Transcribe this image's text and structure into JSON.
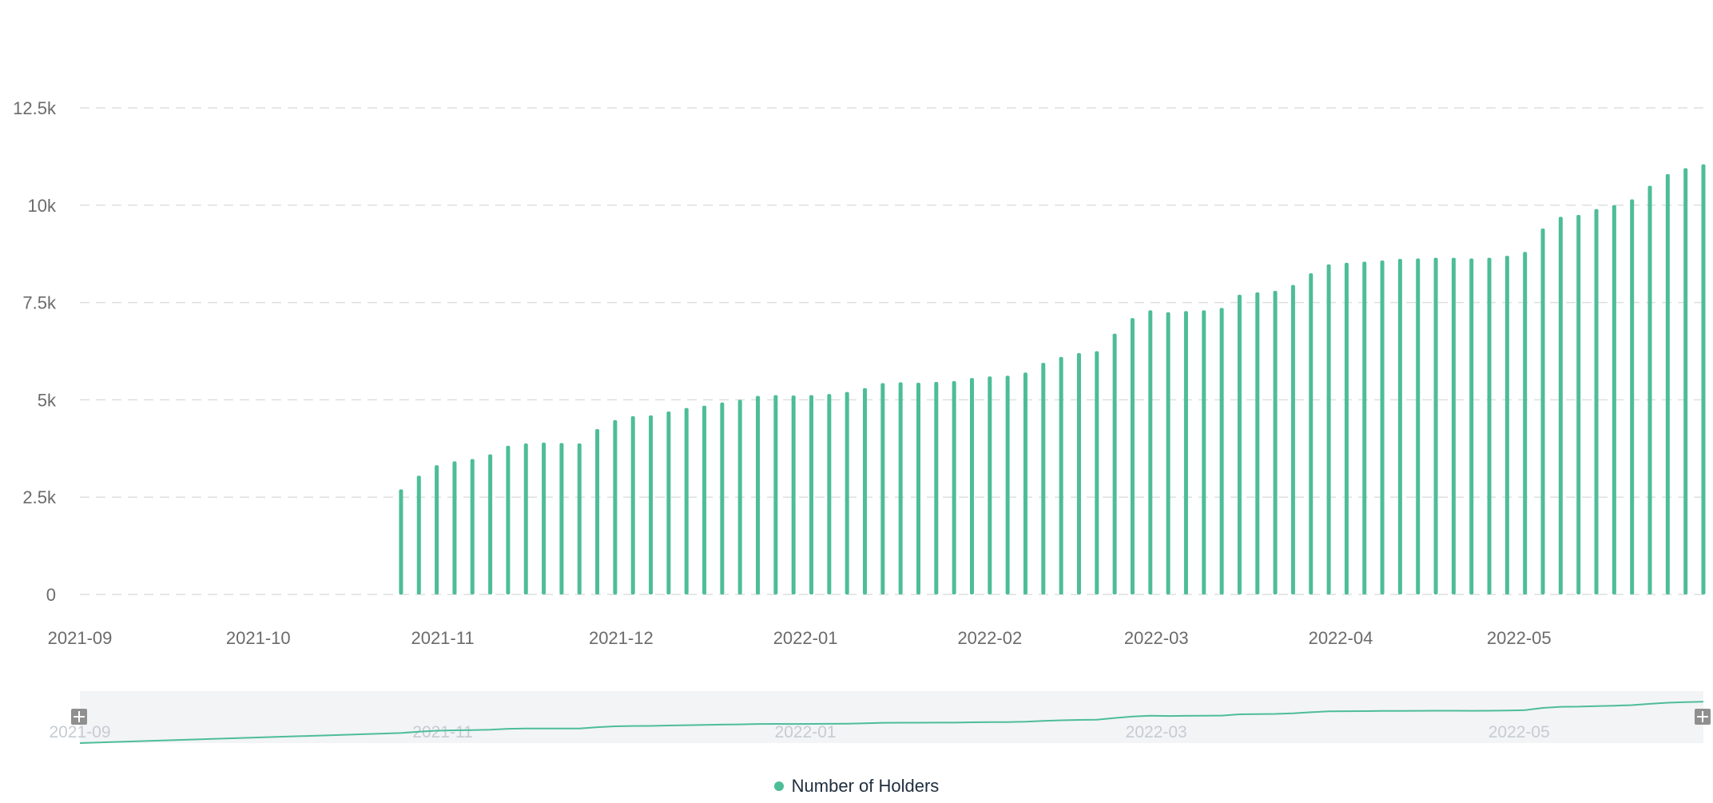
{
  "chart_data": {
    "type": "bar",
    "series": [
      {
        "name": "Number of Holders",
        "color": "#4dbd98",
        "points": [
          [
            "2021-10-25",
            2700
          ],
          [
            "2021-10-28",
            3050
          ],
          [
            "2021-10-31",
            3320
          ],
          [
            "2021-11-03",
            3420
          ],
          [
            "2021-11-06",
            3480
          ],
          [
            "2021-11-09",
            3600
          ],
          [
            "2021-11-12",
            3820
          ],
          [
            "2021-11-15",
            3880
          ],
          [
            "2021-11-18",
            3900
          ],
          [
            "2021-11-21",
            3890
          ],
          [
            "2021-11-24",
            3880
          ],
          [
            "2021-11-27",
            4250
          ],
          [
            "2021-11-30",
            4480
          ],
          [
            "2021-12-03",
            4580
          ],
          [
            "2021-12-06",
            4600
          ],
          [
            "2021-12-09",
            4700
          ],
          [
            "2021-12-12",
            4790
          ],
          [
            "2021-12-15",
            4850
          ],
          [
            "2021-12-18",
            4930
          ],
          [
            "2021-12-21",
            5000
          ],
          [
            "2021-12-24",
            5100
          ],
          [
            "2021-12-27",
            5120
          ],
          [
            "2021-12-30",
            5110
          ],
          [
            "2022-01-02",
            5120
          ],
          [
            "2022-01-05",
            5150
          ],
          [
            "2022-01-08",
            5200
          ],
          [
            "2022-01-11",
            5300
          ],
          [
            "2022-01-14",
            5430
          ],
          [
            "2022-01-17",
            5450
          ],
          [
            "2022-01-20",
            5440
          ],
          [
            "2022-01-23",
            5460
          ],
          [
            "2022-01-26",
            5480
          ],
          [
            "2022-01-29",
            5560
          ],
          [
            "2022-02-01",
            5600
          ],
          [
            "2022-02-04",
            5620
          ],
          [
            "2022-02-07",
            5700
          ],
          [
            "2022-02-10",
            5950
          ],
          [
            "2022-02-13",
            6100
          ],
          [
            "2022-02-16",
            6200
          ],
          [
            "2022-02-19",
            6250
          ],
          [
            "2022-02-22",
            6700
          ],
          [
            "2022-02-25",
            7100
          ],
          [
            "2022-02-28",
            7300
          ],
          [
            "2022-03-03",
            7250
          ],
          [
            "2022-03-06",
            7280
          ],
          [
            "2022-03-09",
            7300
          ],
          [
            "2022-03-12",
            7360
          ],
          [
            "2022-03-15",
            7700
          ],
          [
            "2022-03-18",
            7760
          ],
          [
            "2022-03-21",
            7800
          ],
          [
            "2022-03-24",
            7950
          ],
          [
            "2022-03-27",
            8250
          ],
          [
            "2022-03-30",
            8480
          ],
          [
            "2022-04-02",
            8520
          ],
          [
            "2022-04-05",
            8550
          ],
          [
            "2022-04-08",
            8580
          ],
          [
            "2022-04-11",
            8620
          ],
          [
            "2022-04-14",
            8630
          ],
          [
            "2022-04-17",
            8650
          ],
          [
            "2022-04-20",
            8650
          ],
          [
            "2022-04-23",
            8630
          ],
          [
            "2022-04-26",
            8650
          ],
          [
            "2022-04-29",
            8700
          ],
          [
            "2022-05-02",
            8800
          ],
          [
            "2022-05-05",
            9400
          ],
          [
            "2022-05-08",
            9700
          ],
          [
            "2022-05-11",
            9750
          ],
          [
            "2022-05-14",
            9900
          ],
          [
            "2022-05-17",
            10000
          ],
          [
            "2022-05-20",
            10150
          ],
          [
            "2022-05-23",
            10500
          ],
          [
            "2022-05-26",
            10800
          ],
          [
            "2022-05-29",
            10950
          ],
          [
            "2022-06-01",
            11050
          ]
        ]
      }
    ],
    "y_ticks": [
      "0",
      "2.5k",
      "5k",
      "7.5k",
      "10k",
      "12.5k"
    ],
    "ylim": [
      0,
      12500
    ],
    "x_ticks": [
      "2021-09",
      "2021-10",
      "2021-11",
      "2021-12",
      "2022-01",
      "2022-02",
      "2022-03",
      "2022-04",
      "2022-05"
    ],
    "xlim": [
      "2021-09-01",
      "2022-06-01"
    ],
    "grid": true,
    "gridline_style": "dashed",
    "legend_position": "bottom-center",
    "navigator": {
      "x_labels": [
        "2021-09",
        "2021-11",
        "2022-01",
        "2022-03",
        "2022-05"
      ],
      "handle_icon": "drag-handle-icon"
    },
    "colors": {
      "series": "#4dbd98",
      "grid": "#dcdfe3",
      "axis_text": "#6b6b6b",
      "navigator_bg": "#f2f4f6",
      "navigator_text": "#c7ccd2",
      "handle": "#8f8f8f"
    }
  }
}
